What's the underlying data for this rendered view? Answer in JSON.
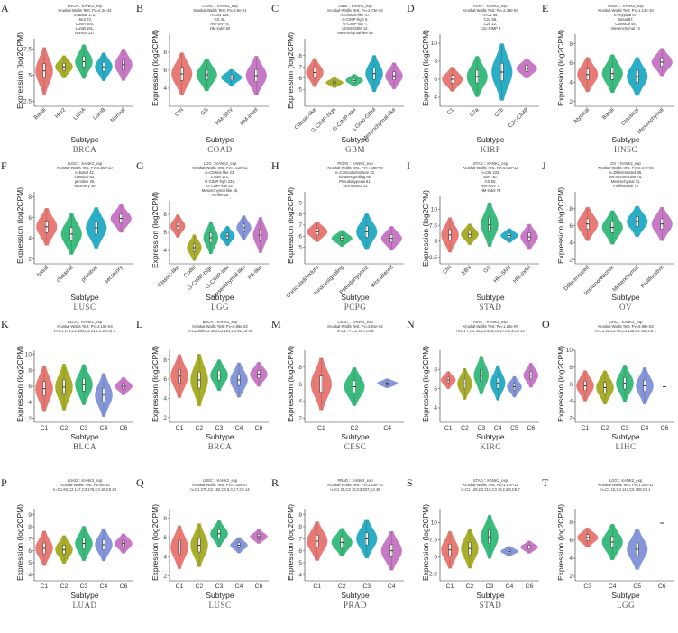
{
  "colors": [
    "#e76f6a",
    "#a1a81b",
    "#2bb673",
    "#1aa7c1",
    "#7b8fd6",
    "#c46ec1"
  ],
  "chart_data": [
    {
      "id": "A",
      "type": "violin",
      "title_lines": [
        "BRCA :: KANK2_exp",
        "Kruskal-Wallis Test: Pv=4.3e-43",
        "n=Basal 172,",
        "Her2 73,",
        "LumA 506,",
        "LumB 191,",
        "Normal 137"
      ],
      "caption": "BRCA",
      "xlabel": "Subtype",
      "ylabel": "Expression (log2CPM)",
      "ylim": [
        2,
        8.5
      ],
      "yticks": [
        2.5,
        5.0,
        7.5
      ],
      "categories": [
        "Basal",
        "Her2",
        "LumA",
        "LumB",
        "Normal"
      ],
      "medians": [
        5.4,
        5.8,
        6.3,
        5.8,
        6.0
      ],
      "spread": [
        2.5,
        1.2,
        1.8,
        1.5,
        1.7
      ],
      "color_idx": [
        0,
        1,
        2,
        3,
        5
      ]
    },
    {
      "id": "B",
      "type": "violin",
      "title_lines": [
        "COAD :: KANK2_exp",
        "Kruskal-Wallis Test: Pv=8.8e-01",
        "n=CIN 228,",
        "GS 46,",
        "HM-SNV 6,",
        "HM-indel 60"
      ],
      "caption": "COAD",
      "xlabel": "Subtype",
      "ylabel": "Expression (log2CPM)",
      "ylim": [
        2,
        10
      ],
      "yticks": [
        4,
        6,
        8
      ],
      "categories": [
        "CIN",
        "GS",
        "HM-SNV",
        "HM-indel"
      ],
      "medians": [
        5.6,
        5.5,
        5.2,
        5.4
      ],
      "spread": [
        2.6,
        2.0,
        1.0,
        2.4
      ],
      "color_idx": [
        0,
        2,
        3,
        5
      ]
    },
    {
      "id": "C",
      "type": "violin",
      "title_lines": [
        "GBM :: KANK2_exp",
        "Kruskal-Wallis Test: Pv=2.73e-02",
        "n=Classic-like 47,",
        "G-CIMP-high 6,",
        "G-CIMP-low 7,",
        "LGm6-GBM 12,",
        "Mesenchymal-like 53"
      ],
      "caption": "GBM",
      "xlabel": "Subtype",
      "ylabel": "Expression (log2CPM)",
      "ylim": [
        3.5,
        9.5
      ],
      "yticks": [
        5.0,
        6.0,
        7.0,
        8.0
      ],
      "categories": [
        "Classic-like",
        "G-CIMP-high",
        "G-CIMP-low",
        "LGm6-GBM",
        "Mesenchymal-like"
      ],
      "medians": [
        6.5,
        5.6,
        5.8,
        6.4,
        6.2
      ],
      "spread": [
        1.4,
        0.5,
        0.6,
        1.8,
        1.3
      ],
      "color_idx": [
        0,
        1,
        2,
        3,
        5
      ]
    },
    {
      "id": "D",
      "type": "violin",
      "title_lines": [
        "KIRP :: KANK2_exp",
        "Kruskal-Wallis Test: Pv=2.38e-04",
        "n=C1 95,",
        "C2a 55,",
        "C2b 22,",
        "C2c-CIMP 9"
      ],
      "caption": "KIRP",
      "xlabel": "Subtype",
      "ylabel": "Expression (log2CPM)",
      "ylim": [
        3,
        11
      ],
      "yticks": [
        4,
        6,
        8,
        10
      ],
      "categories": [
        "C1",
        "C2a",
        "C2b",
        "C2c-CIMP"
      ],
      "medians": [
        6.0,
        6.3,
        6.8,
        7.2
      ],
      "spread": [
        1.5,
        2.5,
        3.5,
        1.2
      ],
      "color_idx": [
        0,
        2,
        3,
        5
      ]
    },
    {
      "id": "E",
      "type": "violin",
      "title_lines": [
        "HNSC :: KANK2_exp",
        "Kruskal-Wallis Test: Pv=1.12e-18",
        "n=Atypical 67,",
        "Basal 87,",
        "Classical 48,",
        "Mesenchymal 74"
      ],
      "caption": "HNSC",
      "xlabel": "Subtype",
      "ylabel": "Expression (log2CPM)",
      "ylim": [
        1.5,
        9
      ],
      "yticks": [
        2,
        4,
        6,
        8
      ],
      "categories": [
        "Atypical",
        "Basal",
        "Classical",
        "Mesenchymal"
      ],
      "medians": [
        4.8,
        4.9,
        4.6,
        6.1
      ],
      "spread": [
        2.0,
        2.2,
        2.2,
        1.6
      ],
      "color_idx": [
        0,
        2,
        3,
        5
      ]
    },
    {
      "id": "F",
      "type": "violin",
      "title_lines": [
        "LUSC :: KANK2_exp",
        "Kruskal-Wallis Test: Pv=4.86e-10",
        "n=basal 42,",
        "classical 63,",
        "primitive 26,",
        "secretory 39"
      ],
      "caption": "LUSC",
      "xlabel": "Subtype",
      "ylabel": "Expression (log2CPM)",
      "ylim": [
        1.5,
        8.5
      ],
      "yticks": [
        2,
        4,
        6,
        8
      ],
      "categories": [
        "basal",
        "classical",
        "primitive",
        "secretory"
      ],
      "medians": [
        5.1,
        4.4,
        5.0,
        5.9
      ],
      "spread": [
        2.0,
        2.2,
        2.2,
        1.5
      ],
      "color_idx": [
        0,
        2,
        3,
        5
      ]
    },
    {
      "id": "G",
      "type": "violin",
      "title_lines": [
        "LGG :: KANK2_exp",
        "Kruskal-Wallis Test: Pv=1.02e-41",
        "n=Classic-like 23,",
        "Codel 171,",
        "G-CIMP-high 234,",
        "G-CIMP-low 12,",
        "Mesenchymal-like 45,",
        "PA-like 26"
      ],
      "caption": "LGG",
      "xlabel": "Subtype",
      "ylabel": "Expression (log2CPM)",
      "ylim": [
        2.5,
        9.5
      ],
      "yticks": [
        4,
        6,
        8
      ],
      "categories": [
        "Classic-like",
        "Codel",
        "G-CIMP-high",
        "G-CIMP-low",
        "Mesenchymal-like",
        "PA-like"
      ],
      "medians": [
        6.7,
        4.3,
        5.4,
        5.6,
        6.5,
        5.7
      ],
      "spread": [
        1.4,
        1.6,
        2.0,
        1.2,
        1.5,
        2.2
      ],
      "color_idx": [
        0,
        1,
        2,
        3,
        4,
        5
      ]
    },
    {
      "id": "H",
      "type": "violin",
      "title_lines": [
        "PCPG :: KANK2_exp",
        "Kruskal-Wallis Test: Pv=7.38e-06",
        "n=Corticaladmixture 22,",
        "Kinasesignaling 66,",
        "Pseudohypoxia 61,",
        "Wnt-altered 22"
      ],
      "caption": "PCPG",
      "xlabel": "Subtype",
      "ylabel": "Expression (log2CPM)",
      "ylim": [
        3.5,
        10
      ],
      "yticks": [
        5,
        6,
        7,
        8,
        9
      ],
      "categories": [
        "Corticaladmixture",
        "Kinasesignaling",
        "Pseudohypoxia",
        "Wnt-altered"
      ],
      "medians": [
        6.4,
        5.8,
        6.4,
        5.8
      ],
      "spread": [
        1.0,
        0.8,
        1.8,
        1.2
      ],
      "color_idx": [
        0,
        2,
        3,
        5
      ]
    },
    {
      "id": "I",
      "type": "violin",
      "title_lines": [
        "STAD :: KANK2_exp",
        "Kruskal-Wallis Test: Pv=4.63e-12",
        "n=CIN 223,",
        "EBV 30,",
        "GS 50,",
        "HM-SNV 7,",
        "HM-indel 73"
      ],
      "caption": "STAD",
      "xlabel": "Subtype",
      "ylabel": "Expression (log2CPM)",
      "ylim": [
        1.5,
        12
      ],
      "yticks": [
        2.5,
        5.0,
        7.5,
        10.0
      ],
      "categories": [
        "CIN",
        "EBV",
        "GS",
        "HM-SNV",
        "HM-indel"
      ],
      "medians": [
        6.0,
        6.1,
        7.6,
        5.9,
        5.7
      ],
      "spread": [
        3.0,
        1.8,
        3.8,
        1.2,
        2.2
      ],
      "color_idx": [
        0,
        1,
        2,
        3,
        5
      ]
    },
    {
      "id": "J",
      "type": "violin",
      "title_lines": [
        "OV :: KANK2_exp",
        "Kruskal-Wallis Test: Pv=5.47e-06",
        "n=Differentiated 66,",
        "Immunoreactive 76,",
        "Mesenchymal 71,",
        "Proliferative 78"
      ],
      "caption": "OV",
      "xlabel": "Subtype",
      "ylabel": "Expression (log2CPM)",
      "ylim": [
        1.5,
        10
      ],
      "yticks": [
        2,
        4,
        6,
        8
      ],
      "categories": [
        "Differentiated",
        "Immunoreactive",
        "Mesenchymal",
        "Proliferative"
      ],
      "medians": [
        6.2,
        5.8,
        6.5,
        6.2
      ],
      "spread": [
        2.2,
        2.2,
        2.0,
        2.2
      ],
      "color_idx": [
        0,
        2,
        3,
        5
      ]
    },
    {
      "id": "K",
      "type": "violin",
      "title_lines": [
        "BLCA :: KANK2_exp",
        "Kruskal-Wallis Test: Pv=3.15e-03",
        "n=C1 173,C2 164,C3 21,C4 36,C6 3"
      ],
      "caption": "BLCA",
      "xlabel": "Subtype",
      "ylabel": "Expression (log2CPM)",
      "ylim": [
        1.5,
        10.5
      ],
      "yticks": [
        2,
        4,
        6,
        8,
        10
      ],
      "categories": [
        "C1",
        "C2",
        "C3",
        "C4",
        "C6"
      ],
      "medians": [
        5.7,
        5.9,
        6.2,
        4.9,
        6.0
      ],
      "spread": [
        3.2,
        3.2,
        2.8,
        3.0,
        1.2
      ],
      "color_idx": [
        0,
        1,
        2,
        4,
        5
      ]
    },
    {
      "id": "L",
      "type": "violin",
      "title_lines": [
        "BRCA :: KANK2_exp",
        "Kruskal-Wallis Test: Pv=6.85e-33",
        "n=C1 369,C2 390,C3 191,C4 92,C6 49"
      ],
      "caption": "BRCA",
      "xlabel": "Subtype",
      "ylabel": "Expression (log2CPM)",
      "ylim": [
        1.5,
        9
      ],
      "yticks": [
        2,
        4,
        6,
        8
      ],
      "categories": [
        "C1",
        "C2",
        "C3",
        "C4",
        "C6"
      ],
      "medians": [
        6.3,
        5.9,
        6.4,
        5.9,
        6.5
      ],
      "spread": [
        2.5,
        3.0,
        1.8,
        2.0,
        1.4
      ],
      "color_idx": [
        0,
        1,
        2,
        4,
        5
      ]
    },
    {
      "id": "M",
      "type": "violin",
      "title_lines": [
        "CESC :: KANK2_exp",
        "Kruskal-Wallis Test: Pv=3.91e-02",
        "n=C1 77,C2 217,C4 6"
      ],
      "caption": "CESC",
      "xlabel": "Subtype",
      "ylabel": "Expression (log2CPM)",
      "ylim": [
        1.5,
        10
      ],
      "yticks": [
        2,
        4,
        6,
        8
      ],
      "categories": [
        "C1",
        "C2",
        "C4"
      ],
      "medians": [
        6.0,
        5.7,
        6.1
      ],
      "spread": [
        3.4,
        2.5,
        0.6
      ],
      "color_idx": [
        0,
        2,
        4
      ]
    },
    {
      "id": "N",
      "type": "violin",
      "title_lines": [
        "KIRC :: KANK2_exp",
        "Kruskal-Wallis Test: Pv=1.28e-09",
        "n=C1 7,C2 20,C3 445,C4 27,C5 3,C6 13"
      ],
      "caption": "KIRC",
      "xlabel": "Subtype",
      "ylabel": "Expression (log2CPM)",
      "ylim": [
        2.5,
        10
      ],
      "yticks": [
        4,
        6,
        8
      ],
      "categories": [
        "C1",
        "C2",
        "C3",
        "C4",
        "C5",
        "C6"
      ],
      "medians": [
        6.9,
        6.5,
        7.4,
        6.6,
        6.2,
        7.4
      ],
      "spread": [
        1.0,
        1.8,
        2.2,
        2.0,
        1.2,
        1.4
      ],
      "color_idx": [
        0,
        1,
        2,
        3,
        4,
        5
      ]
    },
    {
      "id": "O",
      "type": "violin",
      "title_lines": [
        "LIHC :: KANK2_exp",
        "Kruskal-Wallis Test: Pv=8.98e-03",
        "n=C1 22,C2 45,C3 135,C4 158,C6 1"
      ],
      "caption": "LIHC",
      "xlabel": "Subtype",
      "ylabel": "Expression (log2CPM)",
      "ylim": [
        1.5,
        10
      ],
      "yticks": [
        2,
        4,
        6,
        8,
        10
      ],
      "categories": [
        "C1",
        "C2",
        "C3",
        "C4",
        "C6"
      ],
      "medians": [
        5.8,
        5.6,
        6.1,
        5.8,
        5.7
      ],
      "spread": [
        2.0,
        2.2,
        2.4,
        2.4,
        0
      ],
      "color_idx": [
        0,
        1,
        2,
        4,
        5
      ]
    },
    {
      "id": "P",
      "type": "violin",
      "title_lines": [
        "LUAD :: KANK2_exp",
        "Kruskal-Wallis Test: Pv=5e-14",
        "n=C1 60,C2 147,C3 176,C4 16,C6 28"
      ],
      "caption": "LUAD",
      "xlabel": "Subtype",
      "ylabel": "Expression (log2CPM)",
      "ylim": [
        3.5,
        9.5
      ],
      "yticks": [
        4,
        5,
        6,
        7,
        8,
        9
      ],
      "categories": [
        "C1",
        "C2",
        "C3",
        "C4",
        "C6"
      ],
      "medians": [
        6.2,
        6.1,
        6.6,
        6.5,
        6.6
      ],
      "spread": [
        1.6,
        1.3,
        1.6,
        1.5,
        0.9
      ],
      "color_idx": [
        0,
        1,
        2,
        4,
        5
      ]
    },
    {
      "id": "Q",
      "type": "violin",
      "title_lines": [
        "LUSC :: KANK2_exp",
        "Kruskal-Wallis Test: Pv=1.42e-07",
        "n=C1 275,C2 182,C3 6,C4 7,C6 14"
      ],
      "caption": "LUSC",
      "xlabel": "Subtype",
      "ylabel": "Expression (log2CPM)",
      "ylim": [
        1.5,
        9
      ],
      "yticks": [
        2,
        4,
        6,
        8
      ],
      "categories": [
        "C1",
        "C2",
        "C3",
        "C4",
        "C6"
      ],
      "medians": [
        5.0,
        5.2,
        6.4,
        5.2,
        6.1
      ],
      "spread": [
        2.5,
        2.5,
        1.5,
        0.9,
        0.8
      ],
      "color_idx": [
        0,
        1,
        2,
        4,
        5
      ]
    },
    {
      "id": "R",
      "type": "violin",
      "title_lines": [
        "PRAD :: KANK2_exp",
        "Kruskal-Wallis Test: Pv=2.23e-14",
        "n=C1 35,C2 18,C3 307,C4 45"
      ],
      "caption": "PRAD",
      "xlabel": "Subtype",
      "ylabel": "Expression (log2CPM)",
      "ylim": [
        3.5,
        9.5
      ],
      "yticks": [
        4,
        5,
        6,
        7,
        8,
        9
      ],
      "categories": [
        "C1",
        "C2",
        "C3",
        "C4"
      ],
      "medians": [
        6.8,
        6.7,
        7.0,
        6.0
      ],
      "spread": [
        1.8,
        1.3,
        1.8,
        1.8
      ],
      "color_idx": [
        0,
        2,
        3,
        5
      ]
    },
    {
      "id": "S",
      "type": "violin",
      "title_lines": [
        "STAD :: KANK2_exp",
        "Kruskal-Wallis Test: Pv=1.17e-12",
        "n=C1 129,C2 210,C3 39,C4 9,C6 7"
      ],
      "caption": "STAD",
      "xlabel": "Subtype",
      "ylabel": "Expression (log2CPM)",
      "ylim": [
        1.5,
        12
      ],
      "yticks": [
        2.5,
        5.0,
        7.5,
        10.0
      ],
      "categories": [
        "C1",
        "C2",
        "C3",
        "C4",
        "C6"
      ],
      "medians": [
        6.0,
        6.2,
        7.9,
        5.8,
        6.4
      ],
      "spread": [
        3.0,
        3.2,
        3.5,
        0.8,
        1.0
      ],
      "color_idx": [
        0,
        1,
        2,
        4,
        5
      ]
    },
    {
      "id": "T",
      "type": "violin",
      "title_lines": [
        "LGG :: KANK2_exp",
        "Kruskal-Wallis Test: Pv=1.44e-11",
        "n=C3 10,C4 147,C5 358,C6 1"
      ],
      "caption": "LGG",
      "xlabel": "Subtype",
      "ylabel": "Expression (log2CPM)",
      "ylim": [
        1.5,
        9.5
      ],
      "yticks": [
        2,
        4,
        6,
        8
      ],
      "categories": [
        "C3",
        "C4",
        "C5",
        "C6"
      ],
      "medians": [
        6.3,
        5.8,
        5.0,
        7.9
      ],
      "spread": [
        1.2,
        2.2,
        2.5,
        0
      ],
      "color_idx": [
        0,
        2,
        4,
        5
      ]
    }
  ]
}
